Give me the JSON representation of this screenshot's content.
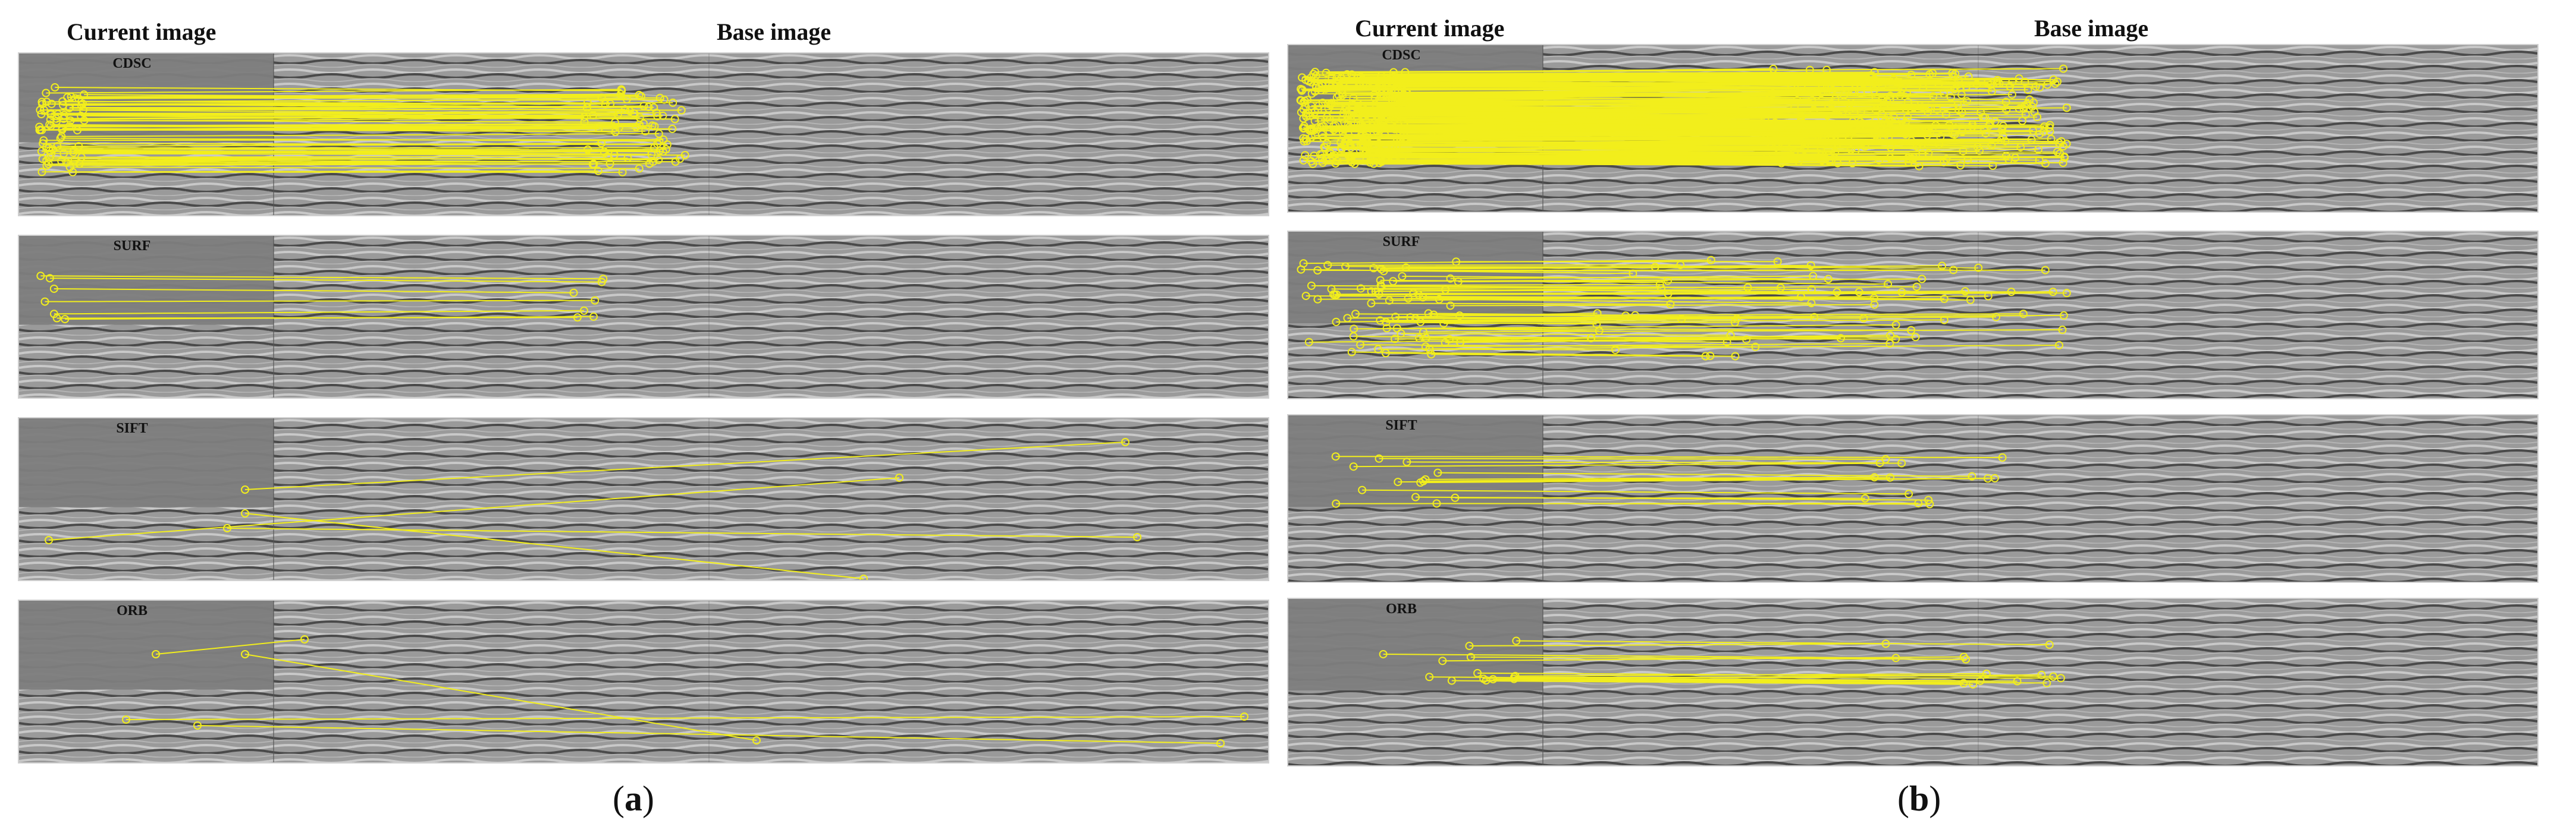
{
  "figure": {
    "panels": [
      {
        "id": "a",
        "caption_letter": "a",
        "header_current": "Current image",
        "header_base": "Base image",
        "rows": [
          {
            "algorithm": "CDSC",
            "match_density": "high"
          },
          {
            "algorithm": "SURF",
            "match_density": "low"
          },
          {
            "algorithm": "SIFT",
            "match_density": "very-low"
          },
          {
            "algorithm": "ORB",
            "match_density": "very-low"
          }
        ]
      },
      {
        "id": "b",
        "caption_letter": "b",
        "header_current": "Current image",
        "header_base": "Base image",
        "rows": [
          {
            "algorithm": "CDSC",
            "match_density": "very-high"
          },
          {
            "algorithm": "SURF",
            "match_density": "high"
          },
          {
            "algorithm": "SIFT",
            "match_density": "medium"
          },
          {
            "algorithm": "ORB",
            "match_density": "medium"
          }
        ]
      }
    ],
    "colors": {
      "match_line": "#f2ee1c",
      "current_band": "#7d7d7d",
      "base_band": "#9a9a9a",
      "stripe_light": "#c8c8c8",
      "stripe_dark": "#4a4a4a"
    }
  }
}
